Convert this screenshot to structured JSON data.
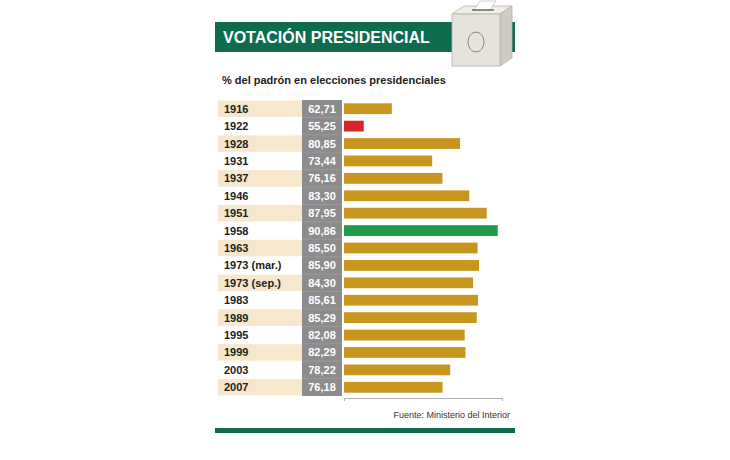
{
  "chart_data": {
    "type": "bar",
    "orientation": "horizontal",
    "title": "VOTACIÓN PRESIDENCIAL",
    "subtitle": "% del padrón en elecciones presidenciales",
    "source": "Fuente: Ministerio del Interior",
    "categories": [
      "1916",
      "1922",
      "1928",
      "1931",
      "1937",
      "1946",
      "1951",
      "1958",
      "1963",
      "1973 (mar.)",
      "1973 (sep.)",
      "1983",
      "1989",
      "1995",
      "1999",
      "2003",
      "2007"
    ],
    "values": [
      62.71,
      55.25,
      80.85,
      73.44,
      76.16,
      83.3,
      87.95,
      90.86,
      85.5,
      85.9,
      84.3,
      85.61,
      85.29,
      82.08,
      82.29,
      78.22,
      76.18
    ],
    "value_labels": [
      "62,71",
      "55,25",
      "80,85",
      "73,44",
      "76,16",
      "83,30",
      "87,95",
      "90,86",
      "85,50",
      "85,90",
      "84,30",
      "85,61",
      "85,29",
      "82,08",
      "82,29",
      "78,22",
      "76,18"
    ],
    "colors": [
      "#c8961e",
      "#d7262b",
      "#c8961e",
      "#c8961e",
      "#c8961e",
      "#c8961e",
      "#c8961e",
      "#1f9a4b",
      "#c8961e",
      "#c8961e",
      "#c8961e",
      "#c8961e",
      "#c8961e",
      "#c8961e",
      "#c8961e",
      "#c8961e",
      "#c8961e"
    ],
    "xlim": [
      50,
      92
    ],
    "tick_labels": "y",
    "data_labels": true,
    "grid": false
  }
}
